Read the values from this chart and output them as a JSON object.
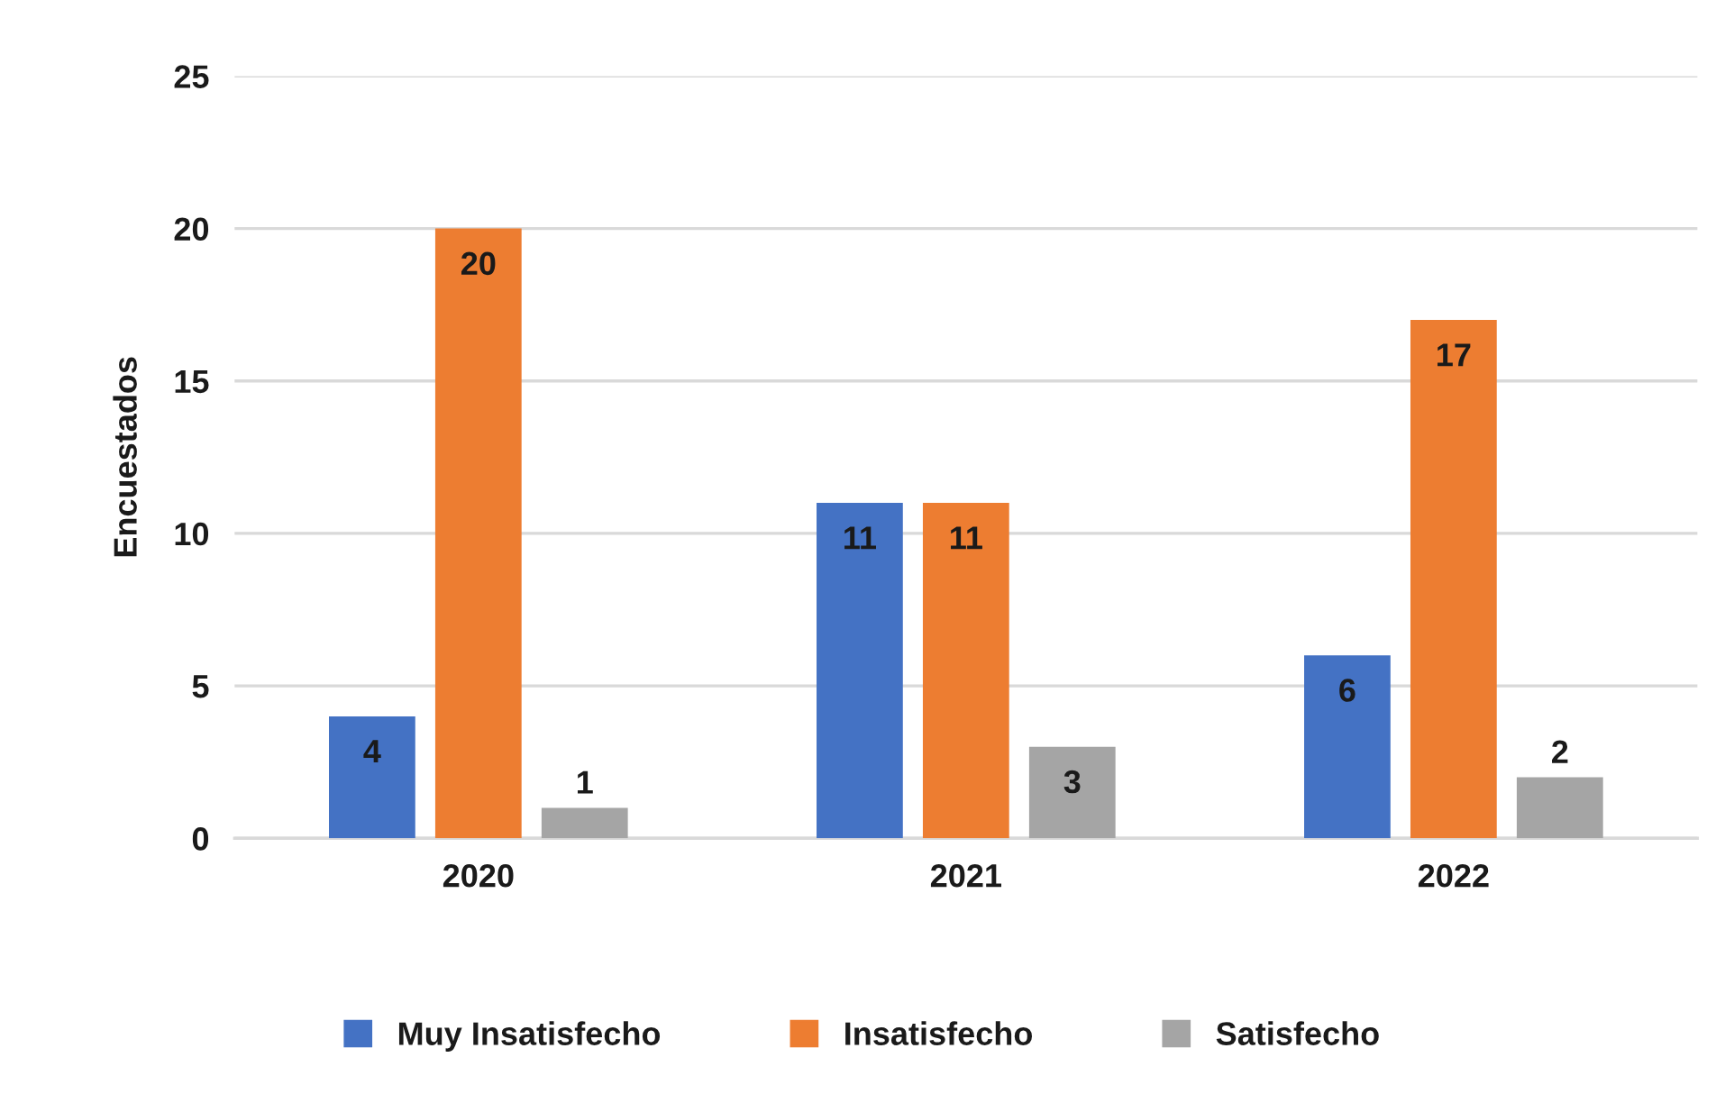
{
  "chart_data": {
    "type": "bar",
    "ylabel": "Encuestados",
    "categories": [
      "2020",
      "2021",
      "2022"
    ],
    "series": [
      {
        "name": "Muy Insatisfecho",
        "color": "#4472c4",
        "values": [
          4,
          11,
          6
        ]
      },
      {
        "name": "Insatisfecho",
        "color": "#ed7d31",
        "values": [
          20,
          11,
          17
        ]
      },
      {
        "name": "Satisfecho",
        "color": "#a5a5a5",
        "values": [
          1,
          3,
          2
        ]
      }
    ],
    "ylim": [
      0,
      25
    ],
    "yticks": [
      0,
      5,
      10,
      15,
      20,
      25
    ],
    "grid": "y",
    "legend": "bottom",
    "data_labels": true
  }
}
